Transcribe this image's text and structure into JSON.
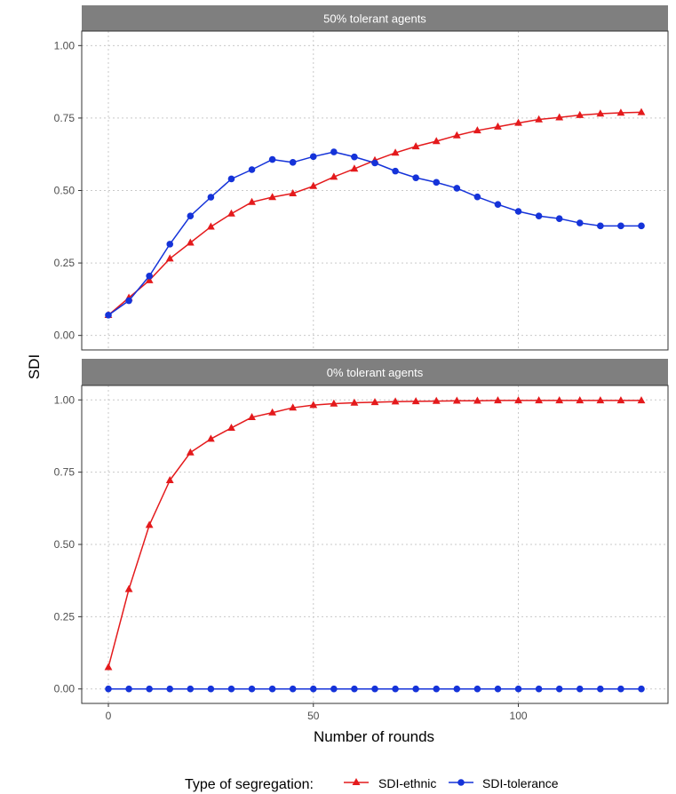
{
  "chart_data": {
    "type": "line",
    "facets": [
      {
        "strip_label": "50% tolerant agents",
        "series": [
          {
            "name": "SDI-ethnic",
            "color": "#e41a1c",
            "marker": "triangle",
            "x": [
              0,
              5,
              10,
              15,
              20,
              25,
              30,
              35,
              40,
              45,
              50,
              55,
              60,
              65,
              70,
              75,
              80,
              85,
              90,
              95,
              100,
              105,
              110,
              115,
              120,
              125,
              130
            ],
            "values": [
              0.07,
              0.13,
              0.19,
              0.265,
              0.32,
              0.375,
              0.42,
              0.46,
              0.477,
              0.49,
              0.515,
              0.547,
              0.575,
              0.604,
              0.63,
              0.652,
              0.67,
              0.69,
              0.707,
              0.72,
              0.733,
              0.745,
              0.752,
              0.76,
              0.765,
              0.768,
              0.77
            ]
          },
          {
            "name": "SDI-tolerance",
            "color": "#1533d9",
            "marker": "circle",
            "x": [
              0,
              5,
              10,
              15,
              20,
              25,
              30,
              35,
              40,
              45,
              50,
              55,
              60,
              65,
              70,
              75,
              80,
              85,
              90,
              95,
              100,
              105,
              110,
              115,
              120,
              125,
              130
            ],
            "values": [
              0.07,
              0.12,
              0.205,
              0.315,
              0.412,
              0.477,
              0.54,
              0.572,
              0.607,
              0.597,
              0.617,
              0.633,
              0.616,
              0.595,
              0.567,
              0.544,
              0.528,
              0.508,
              0.478,
              0.452,
              0.428,
              0.412,
              0.403,
              0.388,
              0.378,
              0.378,
              0.378
            ]
          }
        ]
      },
      {
        "strip_label": "0% tolerant agents",
        "series": [
          {
            "name": "SDI-ethnic",
            "color": "#e41a1c",
            "marker": "triangle",
            "x": [
              0,
              5,
              10,
              15,
              20,
              25,
              30,
              35,
              40,
              45,
              50,
              55,
              60,
              65,
              70,
              75,
              80,
              85,
              90,
              95,
              100,
              105,
              110,
              115,
              120,
              125,
              130
            ],
            "values": [
              0.075,
              0.345,
              0.567,
              0.722,
              0.818,
              0.865,
              0.903,
              0.94,
              0.956,
              0.973,
              0.982,
              0.987,
              0.99,
              0.992,
              0.994,
              0.995,
              0.996,
              0.997,
              0.997,
              0.998,
              0.998,
              0.998,
              0.998,
              0.998,
              0.998,
              0.998,
              0.998
            ]
          },
          {
            "name": "SDI-tolerance",
            "color": "#1533d9",
            "marker": "circle",
            "x": [
              0,
              5,
              10,
              15,
              20,
              25,
              30,
              35,
              40,
              45,
              50,
              55,
              60,
              65,
              70,
              75,
              80,
              85,
              90,
              95,
              100,
              105,
              110,
              115,
              120,
              125,
              130
            ],
            "values": [
              0,
              0,
              0,
              0,
              0,
              0,
              0,
              0,
              0,
              0,
              0,
              0,
              0,
              0,
              0,
              0,
              0,
              0,
              0,
              0,
              0,
              0,
              0,
              0,
              0,
              0,
              0
            ]
          }
        ]
      }
    ],
    "xlabel": "Number of rounds",
    "ylabel": "SDI",
    "xlim": [
      -6.5,
      136.5
    ],
    "ylim": [
      -0.05,
      1.05
    ],
    "x_ticks": [
      0,
      50,
      100
    ],
    "x_tick_labels": [
      "0",
      "50",
      "100"
    ],
    "y_ticks": [
      0,
      0.25,
      0.5,
      0.75,
      1.0
    ],
    "y_tick_labels": [
      "0.00",
      "0.25",
      "0.50",
      "0.75",
      "1.00"
    ],
    "grid": true,
    "legend": {
      "title": "Type of segregation:",
      "position": "bottom",
      "entries": [
        "SDI-ethnic",
        "SDI-tolerance"
      ]
    },
    "colors": {
      "strip_background": "#7f7f7f",
      "grid": "#c9c9c9",
      "panel_border": "#333333"
    }
  }
}
